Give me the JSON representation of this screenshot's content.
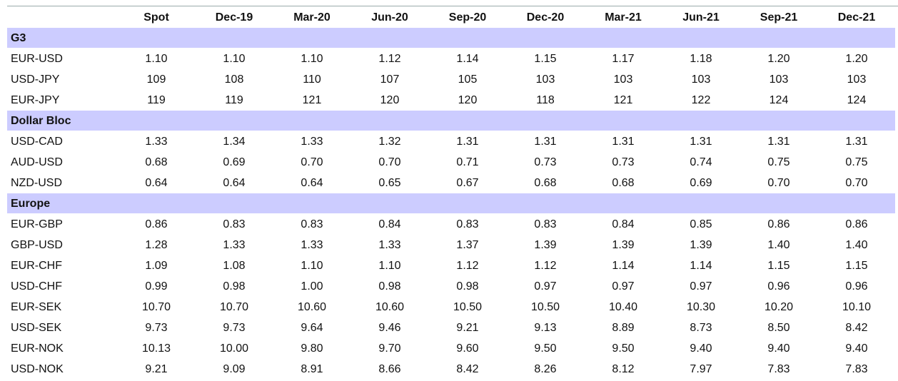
{
  "table": {
    "columns": [
      "Spot",
      "Dec-19",
      "Mar-20",
      "Jun-20",
      "Sep-20",
      "Dec-20",
      "Mar-21",
      "Jun-21",
      "Sep-21",
      "Dec-21"
    ],
    "sections": [
      {
        "title": "G3",
        "rows": [
          {
            "label": "EUR-USD",
            "values": [
              "1.10",
              "1.10",
              "1.10",
              "1.12",
              "1.14",
              "1.15",
              "1.17",
              "1.18",
              "1.20",
              "1.20"
            ]
          },
          {
            "label": "USD-JPY",
            "values": [
              "109",
              "108",
              "110",
              "107",
              "105",
              "103",
              "103",
              "103",
              "103",
              "103"
            ]
          },
          {
            "label": "EUR-JPY",
            "values": [
              "119",
              "119",
              "121",
              "120",
              "120",
              "118",
              "121",
              "122",
              "124",
              "124"
            ]
          }
        ]
      },
      {
        "title": "Dollar Bloc",
        "rows": [
          {
            "label": "USD-CAD",
            "values": [
              "1.33",
              "1.34",
              "1.33",
              "1.32",
              "1.31",
              "1.31",
              "1.31",
              "1.31",
              "1.31",
              "1.31"
            ]
          },
          {
            "label": "AUD-USD",
            "values": [
              "0.68",
              "0.69",
              "0.70",
              "0.70",
              "0.71",
              "0.73",
              "0.73",
              "0.74",
              "0.75",
              "0.75"
            ]
          },
          {
            "label": "NZD-USD",
            "values": [
              "0.64",
              "0.64",
              "0.64",
              "0.65",
              "0.67",
              "0.68",
              "0.68",
              "0.69",
              "0.70",
              "0.70"
            ]
          }
        ]
      },
      {
        "title": "Europe",
        "rows": [
          {
            "label": "EUR-GBP",
            "values": [
              "0.86",
              "0.83",
              "0.83",
              "0.84",
              "0.83",
              "0.83",
              "0.84",
              "0.85",
              "0.86",
              "0.86"
            ]
          },
          {
            "label": "GBP-USD",
            "values": [
              "1.28",
              "1.33",
              "1.33",
              "1.33",
              "1.37",
              "1.39",
              "1.39",
              "1.39",
              "1.40",
              "1.40"
            ]
          },
          {
            "label": "EUR-CHF",
            "values": [
              "1.09",
              "1.08",
              "1.10",
              "1.10",
              "1.12",
              "1.12",
              "1.14",
              "1.14",
              "1.15",
              "1.15"
            ]
          },
          {
            "label": "USD-CHF",
            "values": [
              "0.99",
              "0.98",
              "1.00",
              "0.98",
              "0.98",
              "0.97",
              "0.97",
              "0.97",
              "0.96",
              "0.96"
            ]
          },
          {
            "label": "EUR-SEK",
            "values": [
              "10.70",
              "10.70",
              "10.60",
              "10.60",
              "10.50",
              "10.50",
              "10.40",
              "10.30",
              "10.20",
              "10.10"
            ]
          },
          {
            "label": "USD-SEK",
            "values": [
              "9.73",
              "9.73",
              "9.64",
              "9.46",
              "9.21",
              "9.13",
              "8.89",
              "8.73",
              "8.50",
              "8.42"
            ]
          },
          {
            "label": "EUR-NOK",
            "values": [
              "10.13",
              "10.00",
              "9.80",
              "9.70",
              "9.60",
              "9.50",
              "9.50",
              "9.40",
              "9.40",
              "9.40"
            ]
          },
          {
            "label": "USD-NOK",
            "values": [
              "9.21",
              "9.09",
              "8.91",
              "8.66",
              "8.42",
              "8.26",
              "8.12",
              "7.97",
              "7.83",
              "7.83"
            ]
          }
        ]
      }
    ]
  }
}
